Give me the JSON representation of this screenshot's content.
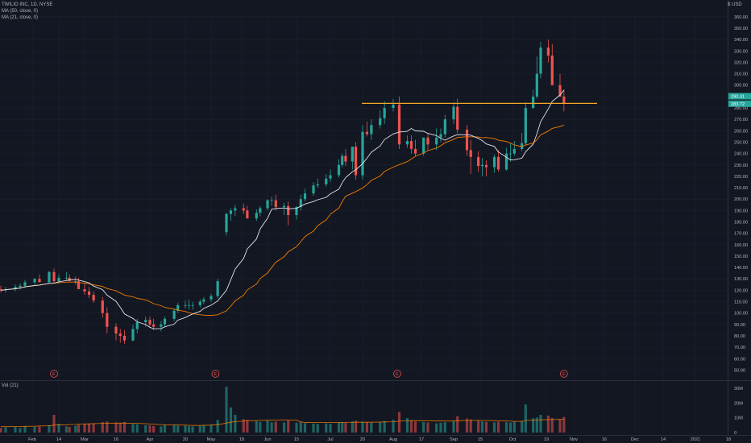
{
  "header": {
    "title": "TWILIO INC, 1D, NYSE",
    "ma50_label": "MA (50, close, 0)",
    "ma21_label": "MA (21, close, 0)",
    "currency": "$ USD"
  },
  "volume_pane": {
    "label": "Vol (21)"
  },
  "colors": {
    "background": "#131722",
    "up": "#26a69a",
    "down": "#ef5350",
    "ma21": "#e0e3eb",
    "ma50": "#f57c00",
    "resistance": "#f5a623",
    "axis_text": "#b2b5be"
  },
  "price_badges": [
    "290.31",
    "283.72"
  ],
  "earnings_marker": "E",
  "chart_data": [
    {
      "type": "candlestick",
      "title": "TWILIO INC, 1D, NYSE",
      "x_ticks": [
        "Feb",
        "14",
        "Mar",
        "16",
        "Apr",
        "20",
        "May",
        "18",
        "Jun",
        "15",
        "Jul",
        "20",
        "Aug",
        "17",
        "Sep",
        "15",
        "Oct",
        "19",
        "Nov",
        "16",
        "Dec",
        "14",
        "2021",
        "18"
      ],
      "y_ticks": [
        "360.00",
        "350.00",
        "340.00",
        "330.00",
        "320.00",
        "310.00",
        "300.00",
        "290.00",
        "280.00",
        "270.00",
        "260.00",
        "250.00",
        "240.00",
        "230.00",
        "220.00",
        "210.00",
        "200.00",
        "190.00",
        "180.00",
        "170.00",
        "160.00",
        "150.00",
        "140.00",
        "130.00",
        "120.00",
        "110.00",
        "100.00",
        "90.00",
        "80.00",
        "70.00",
        "60.00",
        "50.00"
      ],
      "ylim": [
        47,
        361
      ],
      "horizontal_line": 284,
      "earnings_dates": [
        "2020-02-12",
        "2020-05-06",
        "2020-08-05",
        "2020-10-28"
      ],
      "x": [
        "2020-01-21",
        "2020-01-23",
        "2020-01-27",
        "2020-01-29",
        "2020-01-31",
        "2020-02-04",
        "2020-02-06",
        "2020-02-10",
        "2020-02-12",
        "2020-02-14",
        "2020-02-19",
        "2020-02-21",
        "2020-02-25",
        "2020-02-27",
        "2020-03-02",
        "2020-03-04",
        "2020-03-06",
        "2020-03-10",
        "2020-03-12",
        "2020-03-16",
        "2020-03-18",
        "2020-03-20",
        "2020-03-24",
        "2020-03-26",
        "2020-03-30",
        "2020-04-01",
        "2020-04-03",
        "2020-04-07",
        "2020-04-09",
        "2020-04-14",
        "2020-04-16",
        "2020-04-20",
        "2020-04-22",
        "2020-04-24",
        "2020-04-28",
        "2020-04-30",
        "2020-05-04",
        "2020-05-07",
        "2020-05-11",
        "2020-05-13",
        "2020-05-15",
        "2020-05-19",
        "2020-05-21",
        "2020-05-26",
        "2020-05-28",
        "2020-06-01",
        "2020-06-03",
        "2020-06-05",
        "2020-06-09",
        "2020-06-11",
        "2020-06-15",
        "2020-06-17",
        "2020-06-19",
        "2020-06-23",
        "2020-06-25",
        "2020-06-29",
        "2020-07-01",
        "2020-07-06",
        "2020-07-08",
        "2020-07-10",
        "2020-07-14",
        "2020-07-16",
        "2020-07-20",
        "2020-07-22",
        "2020-07-24",
        "2020-07-28",
        "2020-07-30",
        "2020-08-03",
        "2020-08-06",
        "2020-08-10",
        "2020-08-12",
        "2020-08-14",
        "2020-08-18",
        "2020-08-20",
        "2020-08-24",
        "2020-08-26",
        "2020-08-28",
        "2020-09-01",
        "2020-09-03",
        "2020-09-08",
        "2020-09-10",
        "2020-09-14",
        "2020-09-16",
        "2020-09-18",
        "2020-09-22",
        "2020-09-24",
        "2020-09-28",
        "2020-09-30",
        "2020-10-02",
        "2020-10-06",
        "2020-10-08",
        "2020-10-12",
        "2020-10-14",
        "2020-10-16",
        "2020-10-20",
        "2020-10-22",
        "2020-10-26",
        "2020-10-28"
      ],
      "series": [
        {
          "name": "Open",
          "values": [
            121,
            120,
            121,
            123,
            124,
            127,
            130,
            127,
            136,
            128,
            131,
            131,
            128,
            128,
            121,
            119,
            116,
            111,
            100,
            88,
            82,
            80,
            76,
            86,
            92,
            94,
            90,
            88,
            90,
            95,
            102,
            107,
            107,
            107,
            107,
            110,
            112,
            115,
            171,
            187,
            190,
            192,
            190,
            183,
            188,
            192,
            199,
            199,
            193,
            194,
            186,
            193,
            200,
            205,
            212,
            213,
            218,
            221,
            230,
            238,
            233,
            246,
            221,
            259,
            257,
            265,
            271,
            280,
            283,
            248,
            251,
            244,
            240,
            254,
            248,
            254,
            257,
            270,
            281,
            261,
            243,
            237,
            229,
            230,
            228,
            237,
            226,
            240,
            240,
            244,
            249,
            280,
            290,
            310,
            333,
            326,
            300,
            290
          ]
        },
        {
          "name": "High",
          "values": [
            124,
            123,
            125,
            126,
            129,
            131,
            134,
            137,
            139,
            134,
            136,
            134,
            132,
            131,
            126,
            123,
            119,
            114,
            105,
            91,
            86,
            85,
            90,
            95,
            97,
            97,
            95,
            93,
            97,
            104,
            109,
            111,
            112,
            110,
            112,
            114,
            117,
            130,
            188,
            192,
            195,
            196,
            194,
            191,
            194,
            200,
            202,
            204,
            197,
            198,
            194,
            204,
            209,
            215,
            218,
            222,
            226,
            235,
            240,
            244,
            246,
            250,
            265,
            268,
            270,
            278,
            286,
            288,
            290,
            256,
            256,
            252,
            254,
            258,
            262,
            262,
            274,
            285,
            288,
            265,
            252,
            242,
            236,
            234,
            239,
            243,
            245,
            249,
            251,
            258,
            285,
            296,
            325,
            338,
            340,
            336,
            310,
            296
          ]
        },
        {
          "name": "Low",
          "values": [
            118,
            118,
            119,
            121,
            122,
            125,
            127,
            126,
            126,
            126,
            129,
            128,
            125,
            121,
            116,
            113,
            109,
            96,
            82,
            76,
            74,
            73,
            75,
            82,
            88,
            88,
            85,
            84,
            88,
            93,
            100,
            104,
            103,
            103,
            105,
            108,
            110,
            113,
            168,
            181,
            185,
            187,
            184,
            181,
            185,
            190,
            194,
            190,
            186,
            177,
            182,
            190,
            198,
            203,
            210,
            211,
            215,
            219,
            228,
            229,
            226,
            217,
            217,
            255,
            252,
            262,
            266,
            277,
            244,
            245,
            240,
            238,
            238,
            243,
            243,
            250,
            254,
            266,
            258,
            238,
            222,
            224,
            220,
            220,
            223,
            224,
            225,
            233,
            238,
            242,
            247,
            279,
            288,
            306,
            320,
            300,
            290,
            277
          ]
        },
        {
          "name": "Close",
          "values": [
            120,
            121,
            123,
            124,
            127,
            130,
            127,
            136,
            128,
            131,
            131,
            128,
            128,
            121,
            119,
            116,
            111,
            100,
            88,
            82,
            80,
            76,
            86,
            92,
            94,
            90,
            88,
            90,
            95,
            102,
            107,
            107,
            107,
            107,
            110,
            112,
            115,
            128,
            187,
            190,
            192,
            190,
            183,
            188,
            192,
            199,
            199,
            193,
            194,
            186,
            193,
            200,
            205,
            212,
            213,
            218,
            221,
            230,
            238,
            233,
            246,
            221,
            259,
            257,
            265,
            271,
            280,
            283,
            248,
            251,
            244,
            240,
            254,
            248,
            254,
            257,
            270,
            281,
            261,
            243,
            237,
            229,
            230,
            228,
            237,
            226,
            240,
            240,
            244,
            249,
            280,
            290,
            310,
            333,
            326,
            300,
            290,
            284
          ]
        }
      ]
    },
    {
      "type": "bar",
      "title": "Vol (21)",
      "y_ticks": [
        "30M",
        "20M",
        "10M",
        "0"
      ],
      "ylim": [
        0,
        33000000
      ],
      "series": [
        {
          "name": "Vol",
          "values": [
            3200000,
            3500000,
            3800000,
            3100000,
            4200000,
            3900000,
            4100000,
            5000000,
            12000000,
            6000000,
            4200000,
            3800000,
            4600000,
            5200000,
            6100000,
            5800000,
            6300000,
            7000000,
            7400000,
            6800000,
            6500000,
            7100000,
            5900000,
            5600000,
            5000000,
            4800000,
            4400000,
            4200000,
            5100000,
            5300000,
            4800000,
            4600000,
            4300000,
            4100000,
            4500000,
            5200000,
            5500000,
            8500000,
            31000000,
            17000000,
            12000000,
            9000000,
            8500000,
            7800000,
            7200000,
            8100000,
            6900000,
            7400000,
            6800000,
            8200000,
            6600000,
            7000000,
            6400000,
            6100000,
            5800000,
            6200000,
            5900000,
            6800000,
            7100000,
            6500000,
            7600000,
            8000000,
            7200000,
            6900000,
            6700000,
            7300000,
            7800000,
            8600000,
            14000000,
            9800000,
            8400000,
            7500000,
            7100000,
            6800000,
            6200000,
            6600000,
            7000000,
            7900000,
            11000000,
            9500000,
            8800000,
            8100000,
            7600000,
            7200000,
            6900000,
            7400000,
            7000000,
            6800000,
            7300000,
            7800000,
            19000000,
            9600000,
            10200000,
            12000000,
            11500000,
            9800000,
            8600000,
            10500000
          ]
        },
        {
          "name": "Vol MA",
          "values": [
            4000000,
            4000000,
            4100000,
            4100000,
            4200000,
            4300000,
            4400000,
            4600000,
            5000000,
            5200000,
            5300000,
            5400000,
            5500000,
            5600000,
            5700000,
            5900000,
            6000000,
            6200000,
            6300000,
            6400000,
            6400000,
            6400000,
            6300000,
            6200000,
            6000000,
            5800000,
            5600000,
            5400000,
            5300000,
            5200000,
            5100000,
            5000000,
            4900000,
            4800000,
            4800000,
            4900000,
            5000000,
            5300000,
            6400000,
            7000000,
            7400000,
            7700000,
            8000000,
            8100000,
            8200000,
            8300000,
            8300000,
            8400000,
            8400000,
            8400000,
            8300000,
            7200000,
            6900000,
            6800000,
            6800000,
            6800000,
            6800000,
            6800000,
            6800000,
            6800000,
            6900000,
            7000000,
            7000000,
            7000000,
            7000000,
            7100000,
            7200000,
            7300000,
            7700000,
            7900000,
            8000000,
            8000000,
            8000000,
            7900000,
            7800000,
            7800000,
            7800000,
            7800000,
            8000000,
            8100000,
            8200000,
            8200000,
            8200000,
            8100000,
            8000000,
            7900000,
            7800000,
            7700000,
            7600000,
            7600000,
            8200000,
            8300000,
            8400000,
            8600000,
            8700000,
            8800000,
            8900000,
            9000000
          ]
        }
      ]
    }
  ]
}
